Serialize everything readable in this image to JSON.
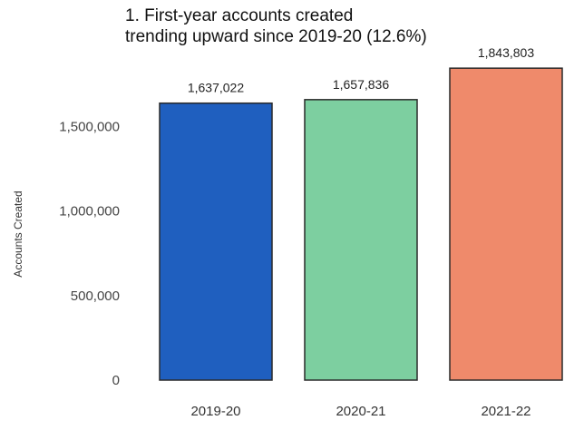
{
  "chart_data": {
    "type": "bar",
    "title_lines": [
      "1. First-year accounts created",
      "trending upward since 2019-20 (12.6%)"
    ],
    "xlabel": "",
    "ylabel": "Accounts Created",
    "categories": [
      "2019-20",
      "2020-21",
      "2021-22"
    ],
    "values": [
      1637022,
      1657836,
      1843803
    ],
    "value_labels": [
      "1,637,022",
      "1,657,836",
      "1,843,803"
    ],
    "colors": [
      "#1f5fbf",
      "#7dcfa0",
      "#ef8a6b"
    ],
    "yticks": [
      0,
      500000,
      1000000,
      1500000
    ],
    "ytick_labels": [
      "0",
      "500,000",
      "1,000,000",
      "1,500,000"
    ],
    "ylim": [
      0,
      1850000
    ],
    "grid": false,
    "legend": "none"
  }
}
